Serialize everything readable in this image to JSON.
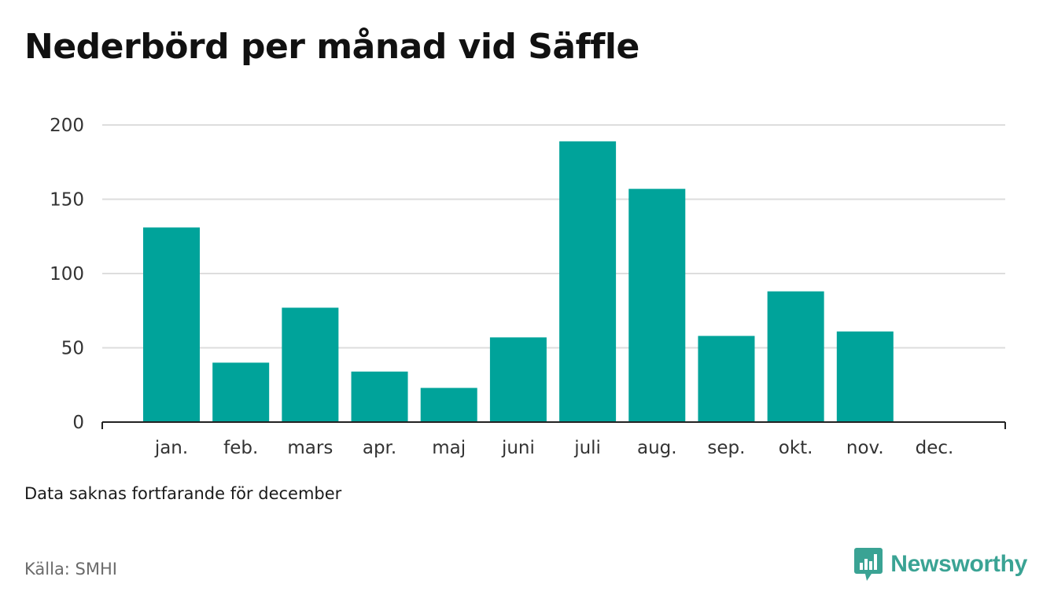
{
  "title": "Nederbörd per månad vid Säffle",
  "note": "Data saknas fortfarande för december",
  "source": "Källa: SMHI",
  "brand": {
    "name": "Newsworthy",
    "icon": "bar-chart-speech-bubble-icon"
  },
  "colors": {
    "bar": "#00a39a",
    "grid": "#dddddd",
    "axis": "#222222",
    "brand": "#3aa394"
  },
  "chart_data": {
    "type": "bar",
    "categories": [
      "jan.",
      "feb.",
      "mars",
      "apr.",
      "maj",
      "juni",
      "juli",
      "aug.",
      "sep.",
      "okt.",
      "nov.",
      "dec."
    ],
    "values": [
      131,
      40,
      77,
      34,
      23,
      57,
      189,
      157,
      58,
      88,
      61,
      null
    ],
    "ylim": [
      0,
      200
    ],
    "yticks": [
      0,
      50,
      100,
      150,
      200
    ],
    "grid": true,
    "legend": "none"
  }
}
